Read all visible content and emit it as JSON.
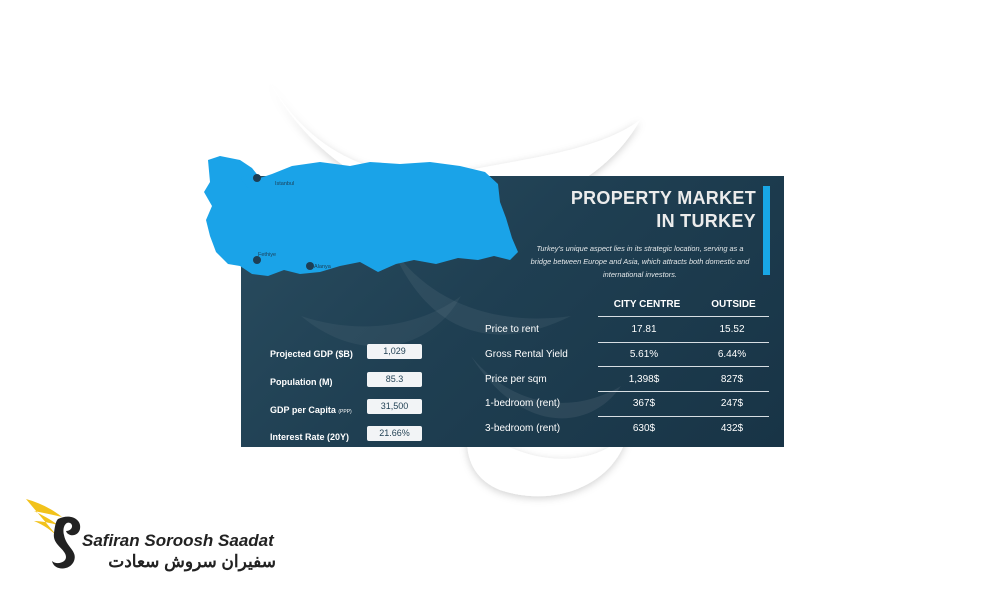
{
  "title": {
    "line1": "PROPERTY MARKET",
    "line2": "IN TURKEY"
  },
  "description": "Turkey's unique aspect lies in its strategic location, serving as a bridge between Europe and Asia, which attracts both domestic and international investors.",
  "map": {
    "cities": [
      "Istanbul",
      "Fethiye",
      "Alanya"
    ],
    "fill_color": "#1aa3e8"
  },
  "indicators": [
    {
      "label": "Projected GDP ($B)",
      "note": "",
      "value": "1,029"
    },
    {
      "label": "Population (M)",
      "note": "",
      "value": "85.3"
    },
    {
      "label": "GDP per Capita",
      "note": "(PPP)",
      "value": "31,500"
    },
    {
      "label": "Interest Rate (20Y)",
      "note": "",
      "value": "21.66%"
    }
  ],
  "table": {
    "headers": [
      "CITY CENTRE",
      "OUTSIDE"
    ],
    "rows": [
      {
        "label": "Price to rent",
        "city": "17.81",
        "outside": "15.52"
      },
      {
        "label": "Gross Rental Yield",
        "city": "5.61%",
        "outside": "6.44%"
      },
      {
        "label": "Price per sqm",
        "city": "1,398$",
        "outside": "827$"
      },
      {
        "label": "1-bedroom (rent)",
        "city": "367$",
        "outside": "247$"
      },
      {
        "label": "3-bedroom (rent)",
        "city": "630$",
        "outside": "432$"
      }
    ]
  },
  "brand": {
    "name_en": "Safiran Soroosh Saadat",
    "name_fa": "سفیران سروش سعادت",
    "accent_color": "#f2c21b"
  },
  "colors": {
    "panel": "#1f3f52",
    "accent": "#18a7e6"
  }
}
